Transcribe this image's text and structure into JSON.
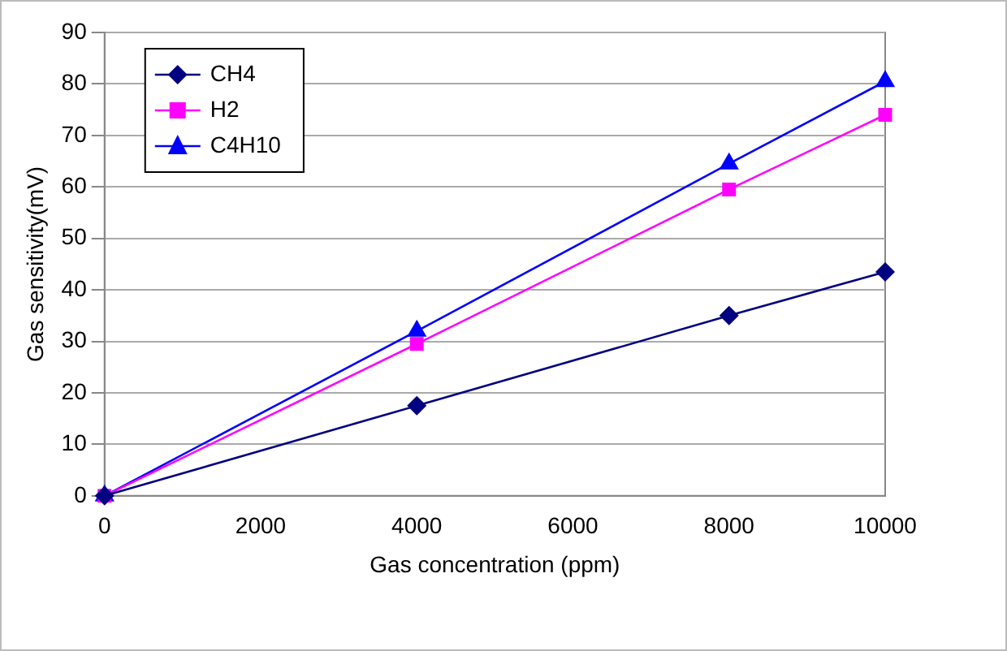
{
  "chart_data": {
    "type": "line",
    "xlabel": "Gas concentration (ppm)",
    "ylabel": "Gas sensitivity(mV)",
    "x": [
      0,
      4000,
      8000,
      10000
    ],
    "xlim": [
      0,
      10000
    ],
    "xticks": [
      0,
      2000,
      4000,
      6000,
      8000,
      10000
    ],
    "ylim": [
      0,
      90
    ],
    "yticks": [
      0,
      10,
      20,
      30,
      40,
      50,
      60,
      70,
      80,
      90
    ],
    "grid": "y",
    "legend": "top left",
    "line_style": "solid",
    "series": [
      {
        "name": "CH4",
        "color": "#000080",
        "marker": "diamond",
        "values": [
          0,
          17.5,
          35,
          43.5
        ]
      },
      {
        "name": "H2",
        "color": "#ff00ff",
        "marker": "square",
        "values": [
          0,
          29.5,
          59.5,
          74
        ]
      },
      {
        "name": "C4H10",
        "color": "#0000ff",
        "marker": "triangle",
        "values": [
          0,
          32,
          64.5,
          80.5
        ]
      }
    ]
  }
}
